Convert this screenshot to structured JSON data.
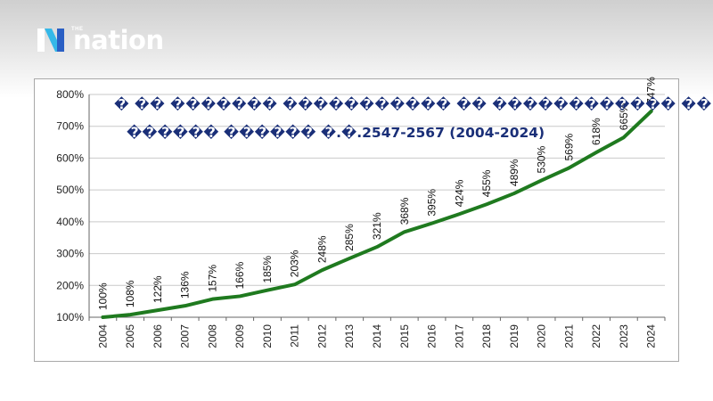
{
  "brand": {
    "small_text": "THE",
    "name": "nation",
    "colors": {
      "n_cyan": "#35b8e8",
      "n_blue": "#2a5fc4",
      "text": "#ffffff"
    }
  },
  "chart_data": {
    "type": "line",
    "title_lines": [
      "� �� ������� ����������� �� ������������ �� ��",
      "������ ������ �.�.2547-2567 (2004-2024)"
    ],
    "xlabel": "",
    "ylabel": "",
    "categories": [
      "2004",
      "2005",
      "2006",
      "2007",
      "2008",
      "2009",
      "2010",
      "2011",
      "2012",
      "2013",
      "2014",
      "2015",
      "2016",
      "2017",
      "2018",
      "2019",
      "2020",
      "2021",
      "2022",
      "2023",
      "2024"
    ],
    "values": [
      100,
      108,
      122,
      136,
      157,
      166,
      185,
      203,
      248,
      285,
      321,
      368,
      395,
      424,
      455,
      489,
      530,
      569,
      618,
      665,
      747
    ],
    "data_labels": [
      "100%",
      "108%",
      "122%",
      "136%",
      "157%",
      "166%",
      "185%",
      "203%",
      "248%",
      "285%",
      "321%",
      "368%",
      "395%",
      "424%",
      "455%",
      "489%",
      "530%",
      "569%",
      "618%",
      "665%",
      "747%"
    ],
    "ylim": [
      100,
      800
    ],
    "yticks": [
      100,
      200,
      300,
      400,
      500,
      600,
      700,
      800
    ],
    "ytick_labels": [
      "100%",
      "200%",
      "300%",
      "400%",
      "500%",
      "600%",
      "700%",
      "800%"
    ],
    "grid": true,
    "legend": "none",
    "line_color": "#1f7a1f",
    "grid_color": "#c9c9c9"
  }
}
